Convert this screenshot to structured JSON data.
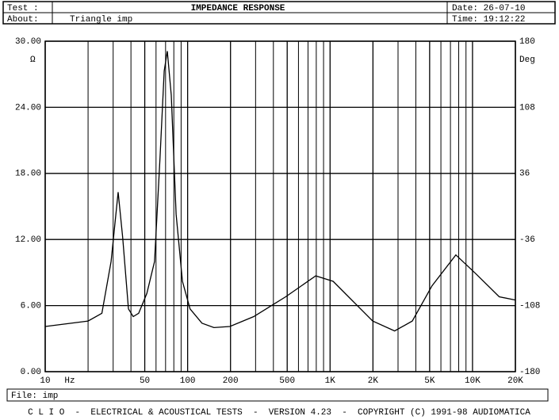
{
  "header": {
    "test_label": "Test :",
    "title": "IMPEDANCE RESPONSE",
    "date": "Date: 26-07-10",
    "about_label": "About:",
    "about": "Triangle imp",
    "time": "Time: 19:12:22"
  },
  "chart_data": {
    "type": "line",
    "xscale": "log",
    "x_unit": "Hz",
    "y_unit": "Ω",
    "y2_unit": "Deg",
    "xlim": [
      10,
      20000
    ],
    "xticks": [
      10,
      50,
      100,
      200,
      500,
      {
        "value": 1000,
        "label": "1K"
      },
      {
        "value": 2000,
        "label": "2K"
      },
      {
        "value": 5000,
        "label": "5K"
      },
      {
        "value": 10000,
        "label": "10K"
      },
      {
        "value": 20000,
        "label": "20K"
      }
    ],
    "minor_xticks": [
      20,
      30,
      40,
      60,
      70,
      80,
      90,
      300,
      400,
      600,
      700,
      800,
      900,
      3000,
      4000,
      6000,
      7000,
      8000,
      9000
    ],
    "ylim": [
      0,
      30
    ],
    "yticks": [
      {
        "value": 0,
        "label": "0.00"
      },
      {
        "value": 6,
        "label": "6.00"
      },
      {
        "value": 12,
        "label": "12.00"
      },
      {
        "value": 18,
        "label": "18.00"
      },
      {
        "value": 24,
        "label": "24.00"
      },
      {
        "value": 30,
        "label": "30.00"
      }
    ],
    "y2lim": [
      -180,
      180
    ],
    "y2ticks": [
      -180,
      -108,
      -36,
      36,
      108,
      180
    ],
    "grid": true,
    "x": [
      10,
      20,
      25,
      29,
      32.5,
      35,
      38.4,
      41.5,
      45.3,
      51.7,
      58.6,
      64,
      68.5,
      72,
      76.8,
      83,
      92,
      104,
      126,
      153,
      198,
      291,
      488,
      793,
      1050,
      1445,
      1990,
      2840,
      3780,
      5200,
      7640,
      10530,
      15400,
      20000
    ],
    "series": [
      {
        "name": "Impedance",
        "color": "#000000",
        "values": [
          4.1,
          4.6,
          5.3,
          10.0,
          16.3,
          12.2,
          5.7,
          5.0,
          5.3,
          7.1,
          10.0,
          19.4,
          27.3,
          29.1,
          25.1,
          14.3,
          8.2,
          5.7,
          4.4,
          4.0,
          4.1,
          5.0,
          6.8,
          8.7,
          8.2,
          6.4,
          4.6,
          3.7,
          4.6,
          7.8,
          10.6,
          8.9,
          6.8,
          6.5
        ]
      }
    ]
  },
  "footer": {
    "file": "File: imp",
    "credits": "C L I O  -  ELECTRICAL & ACOUSTICAL TESTS  -  VERSION 4.23  -  COPYRIGHT (C) 1991-98 AUDIOMATICA"
  }
}
